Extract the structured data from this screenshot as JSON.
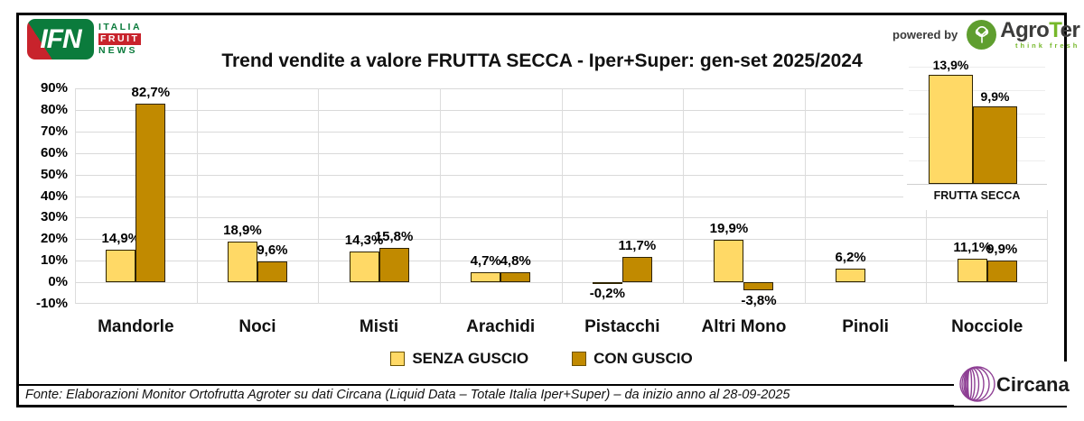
{
  "header": {
    "ifn_logo": {
      "acronym": "IFN",
      "lines": [
        "ITALIA",
        "FRUIT",
        "NEWS"
      ]
    },
    "title": "Trend vendite a valore FRUTTA SECCA - Iper+Super: gen-set 2025/2024",
    "powered_by": "powered by",
    "agroter": {
      "agro": "Agro",
      "t": "T",
      "er": "er",
      "tagline": "think fresh"
    }
  },
  "chart_data": {
    "type": "bar",
    "title": "Trend vendite a valore FRUTTA SECCA - Iper+Super: gen-set 2025/2024",
    "categories": [
      "Mandorle",
      "Noci",
      "Misti",
      "Arachidi",
      "Pistacchi",
      "Altri Mono",
      "Pinoli",
      "Nocciole"
    ],
    "series": [
      {
        "name": "SENZA GUSCIO",
        "color": "#FFD966",
        "values": [
          14.9,
          18.9,
          14.3,
          4.7,
          -0.2,
          19.9,
          6.2,
          11.1
        ],
        "labels": [
          "14,9%",
          "18,9%",
          "14,3%",
          "4,7%",
          "-0,2%",
          "19,9%",
          "6,2%",
          "11,1%"
        ]
      },
      {
        "name": "CON GUSCIO",
        "color": "#C18A00",
        "values": [
          82.7,
          9.6,
          15.8,
          4.8,
          11.7,
          -3.8,
          null,
          9.9
        ],
        "labels": [
          "82,7%",
          "9,6%",
          "15,8%",
          "4,8%",
          "11,7%",
          "-3,8%",
          null,
          "9,9%"
        ]
      }
    ],
    "ylim": [
      -10,
      90
    ],
    "ytick_step": 10,
    "yticks": [
      "90%",
      "80%",
      "70%",
      "60%",
      "50%",
      "40%",
      "30%",
      "20%",
      "10%",
      "0%",
      "-10%"
    ],
    "grid": "horizontal gridlines + vertical category separators",
    "legend_position": "bottom",
    "inset": {
      "label": "FRUTTA SECCA",
      "series": [
        {
          "name": "SENZA GUSCIO",
          "value": 13.9,
          "label": "13,9%",
          "color": "#FFD966"
        },
        {
          "name": "CON GUSCIO",
          "value": 9.9,
          "label": "9,9%",
          "color": "#C18A00"
        }
      ]
    }
  },
  "footer": {
    "source": "Fonte: Elaborazioni Monitor Ortofrutta Agroter su dati Circana (Liquid Data – Totale Italia Iper+Super) – da inizio anno al 28-09-2025",
    "circana_name": "Circana",
    "circana_dot": "."
  },
  "colors": {
    "senza_guscio": "#FFD966",
    "con_guscio": "#C18A00",
    "bar_border": "#2e2300",
    "grid": "#D9D9D9",
    "ifn_red": "#C8232C",
    "ifn_green": "#0B7B3C",
    "agroter_green": "#76B82A",
    "circana_purple": "#8E3F94"
  }
}
